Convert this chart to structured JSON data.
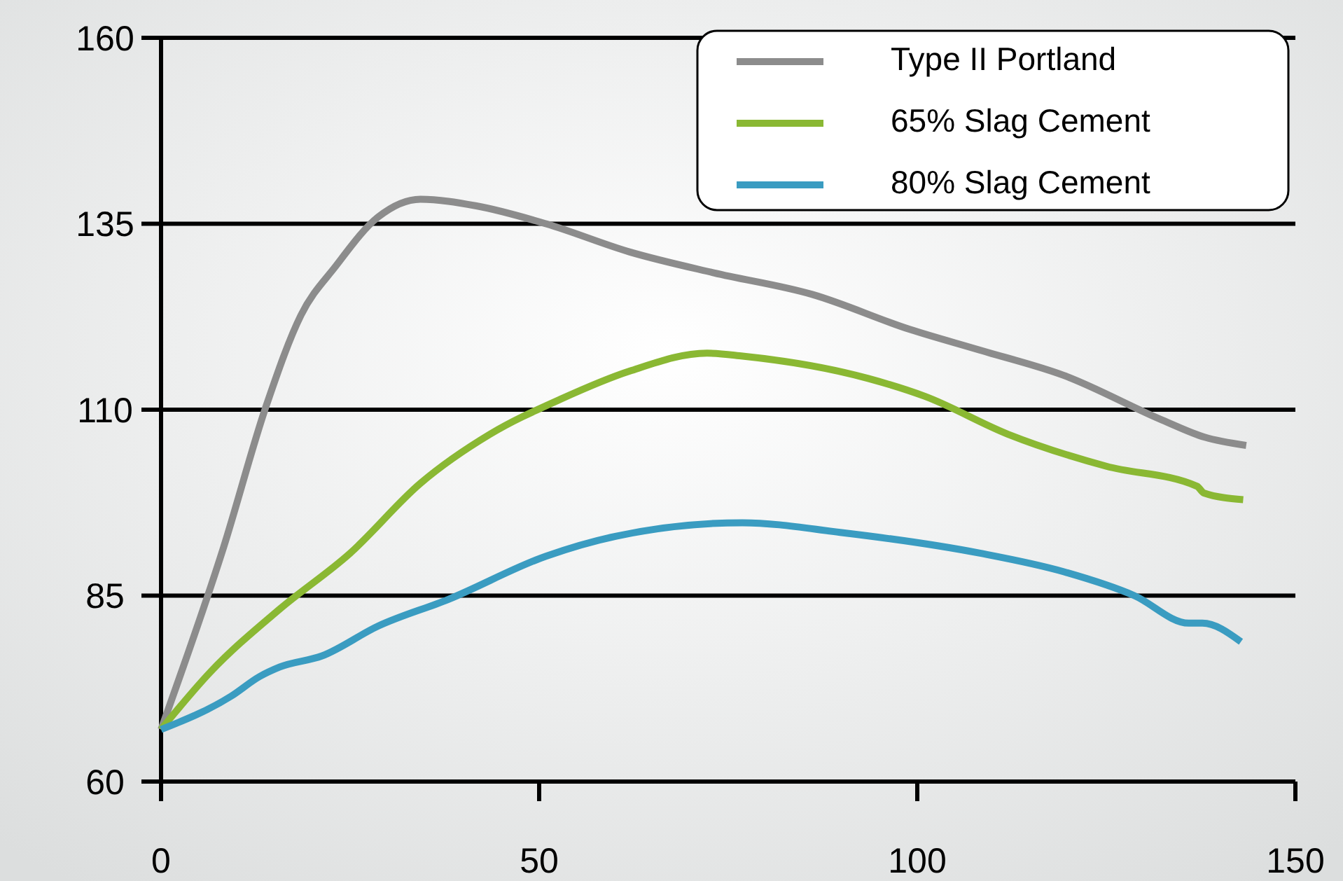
{
  "chart_data": {
    "type": "line",
    "x": [
      0,
      8.3,
      13.9,
      18.5,
      23.1,
      28.7,
      34.3,
      41.7,
      50.9,
      62,
      73.1,
      86.1,
      99,
      108.3,
      119.4,
      132.4,
      138,
      143.5
    ],
    "series": [
      {
        "name": "Type II Portland",
        "color": "#8c8c8c",
        "values": [
          67,
          91.6,
          110.5,
          122.7,
          129.3,
          135.9,
          138.3,
          137.4,
          135,
          131.2,
          128.4,
          125.5,
          120.8,
          118,
          114.6,
          108.6,
          106.3,
          105.2
        ]
      },
      {
        "name": "65% Slag Cement",
        "color": "#8ab833",
        "x": [
          0,
          6.5,
          15.7,
          25,
          34.3,
          43.5,
          52.8,
          62,
          72.2,
          76.9,
          93.5,
          101,
          112,
          125,
          137,
          137.9,
          143.1
        ],
        "values": [
          67,
          74.7,
          83.2,
          90.7,
          100.1,
          106.7,
          111.4,
          115.2,
          117.6,
          117.2,
          114.2,
          111.8,
          106.7,
          102.4,
          99.7,
          98.8,
          97.9
        ]
      },
      {
        "name": "80% Slag Cement",
        "color": "#3a9cc1",
        "x": [
          0,
          9.3,
          13,
          15.7,
          21.3,
          28.7,
          38,
          50.9,
          60.2,
          76.9,
          89.8,
          108.3,
          119.4,
          128.7,
          135.9,
          137.7,
          142.8
        ],
        "values": [
          67,
          71.5,
          74.1,
          75.4,
          76.9,
          80.9,
          84.5,
          90.3,
          93,
          94.8,
          93.5,
          90.7,
          88.2,
          85,
          81.3,
          81.3,
          78.8
        ]
      }
    ],
    "xlim": [
      0,
      150
    ],
    "xticks": [
      0,
      50,
      100,
      150
    ],
    "ylim": [
      60,
      160
    ],
    "yticks": [
      60,
      85,
      110,
      135,
      160
    ],
    "grid": "y",
    "legend": "top right",
    "marker": "none",
    "line_style": "solid"
  }
}
